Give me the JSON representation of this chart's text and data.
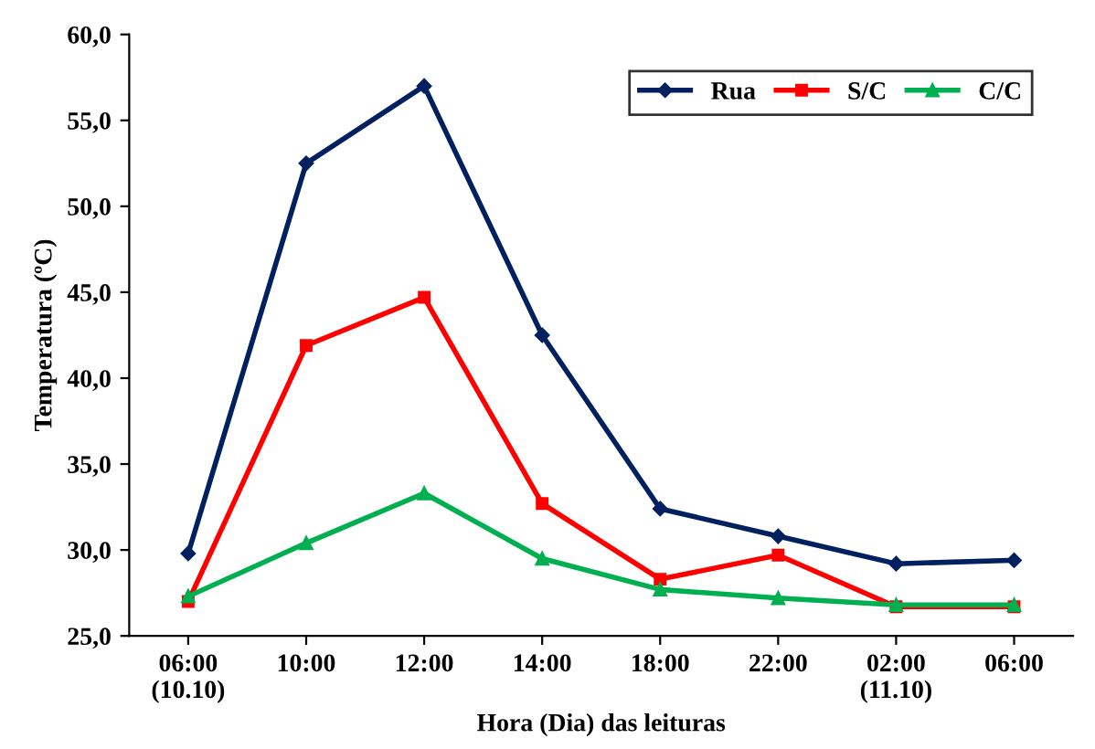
{
  "chart_data": {
    "type": "line",
    "xlabel": "Hora (Dia) das leituras",
    "ylabel": "Temperatura (ºC)",
    "categories": [
      "06:00\n(10.10)",
      "10:00",
      "12:00",
      "14:00",
      "18:00",
      "22:00",
      "02:00\n(11.10)",
      "06:00"
    ],
    "series": [
      {
        "name": "Rua",
        "color": "#002060",
        "marker": "diamond",
        "values": [
          29.8,
          52.5,
          57.0,
          42.5,
          32.4,
          30.8,
          29.2,
          29.4
        ]
      },
      {
        "name": "S/C",
        "color": "#ff0000",
        "marker": "square",
        "values": [
          27.0,
          41.9,
          44.7,
          32.7,
          28.3,
          29.7,
          26.7,
          26.7
        ]
      },
      {
        "name": "C/C",
        "color": "#00b050",
        "marker": "triangle",
        "values": [
          27.3,
          30.4,
          33.3,
          29.5,
          27.7,
          27.2,
          26.8,
          26.8
        ]
      }
    ],
    "ylim": [
      25,
      60
    ],
    "yticks": [
      {
        "value": 25,
        "label": "25,0"
      },
      {
        "value": 30,
        "label": "30,0"
      },
      {
        "value": 35,
        "label": "35,0"
      },
      {
        "value": 40,
        "label": "40,0"
      },
      {
        "value": 45,
        "label": "45,0"
      },
      {
        "value": 50,
        "label": "50,0"
      },
      {
        "value": 55,
        "label": "55,0"
      },
      {
        "value": 60,
        "label": "60,0"
      }
    ],
    "grid": false,
    "legend": "top right",
    "line_style": "solid"
  }
}
